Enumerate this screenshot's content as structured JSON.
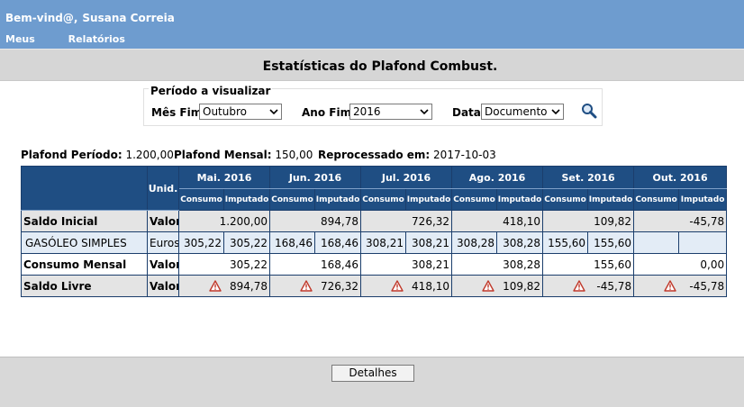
{
  "header": {
    "welcome": "Bem-vind@,",
    "user_name": "Susana Correia",
    "menu": [
      {
        "label": "Meus"
      },
      {
        "label": "Relatórios"
      }
    ]
  },
  "page_title": "Estatísticas do Plafond Combust.",
  "period": {
    "legend": "Período a visualizar",
    "mes_fim_label": "Mês Fim",
    "mes_fim_value": "Outubro",
    "ano_fim_label": "Ano Fim",
    "ano_fim_value": "2016",
    "data_label": "Data",
    "data_value": "Documento",
    "search_icon": "search-icon"
  },
  "info": {
    "plafond_periodo_label": "Plafond Período:",
    "plafond_periodo_value": "1.200,00",
    "plafond_mensal_label": "Plafond Mensal:",
    "plafond_mensal_value": "150,00",
    "reprocessado_label": "Reprocessado em:",
    "reprocessado_value": "2017-10-03"
  },
  "table": {
    "unid_header": "Unid.",
    "consumo_header": "Consumo",
    "imputado_header": "Imputado",
    "months": [
      "Mai. 2016",
      "Jun. 2016",
      "Jul. 2016",
      "Ago. 2016",
      "Set. 2016",
      "Out. 2016"
    ],
    "rows": {
      "saldo_inicial": {
        "label": "Saldo Inicial",
        "unit": "Valor",
        "values": [
          "1.200,00",
          "894,78",
          "726,32",
          "418,10",
          "109,82",
          "-45,78"
        ]
      },
      "gasoleo": {
        "label": "GASÓLEO SIMPLES",
        "unit": "Euros",
        "consumo": [
          "305,22",
          "168,46",
          "308,21",
          "308,28",
          "155,60",
          ""
        ],
        "imputado": [
          "305,22",
          "168,46",
          "308,21",
          "308,28",
          "155,60",
          ""
        ]
      },
      "consumo_mensal": {
        "label": "Consumo Mensal",
        "unit": "Valor",
        "values": [
          "305,22",
          "168,46",
          "308,21",
          "308,28",
          "155,60",
          "0,00"
        ]
      },
      "saldo_livre": {
        "label": "Saldo Livre",
        "unit": "Valor",
        "values": [
          "894,78",
          "726,32",
          "418,10",
          "109,82",
          "-45,78",
          "-45,78"
        ],
        "warning_icon": "warning-icon"
      }
    }
  },
  "footer": {
    "detalhes_label": "Detalhes"
  },
  "colors": {
    "topbar": "#6e9ccf",
    "table_header": "#1f4e83",
    "title_band": "#d6d6d6",
    "warning": "#c0392b"
  }
}
